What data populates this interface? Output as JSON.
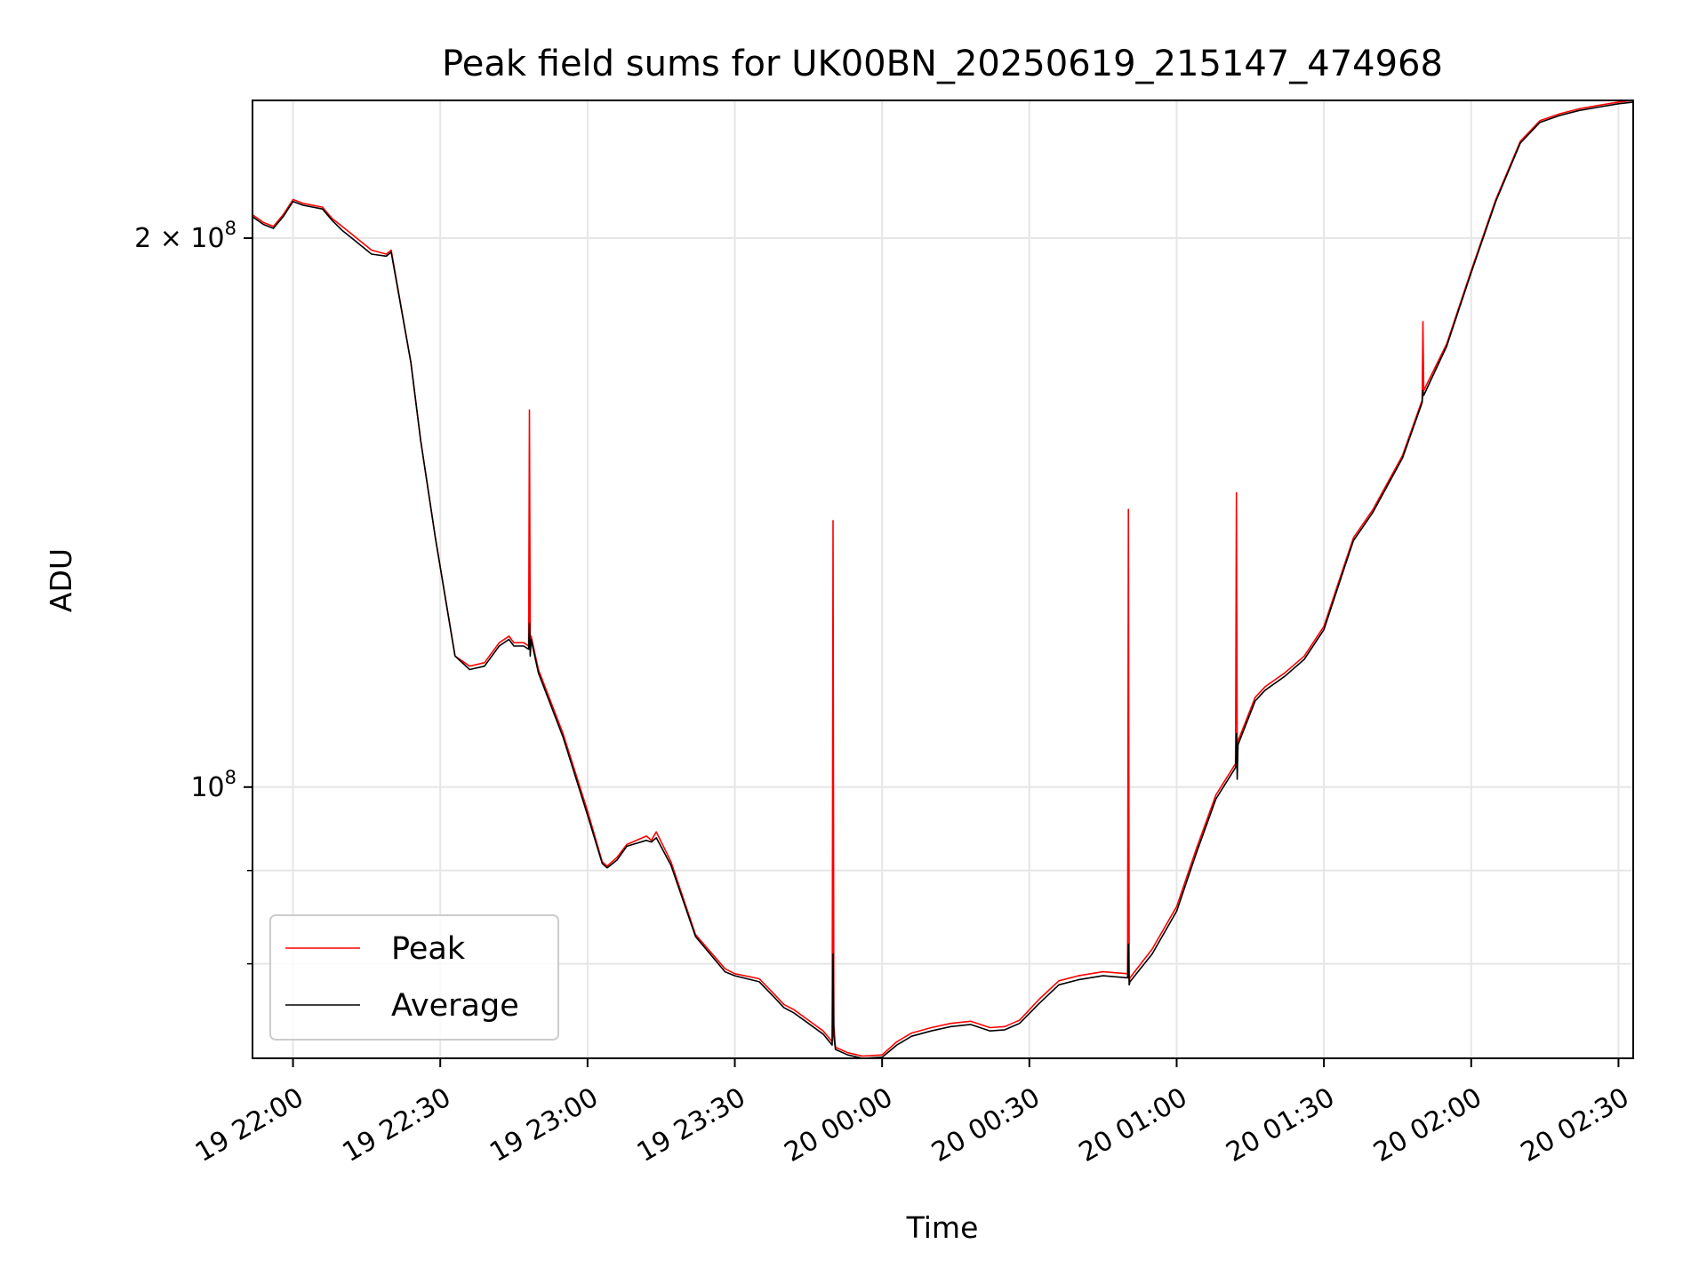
{
  "chart_data": {
    "type": "line",
    "title": "Peak field sums for UK00BN_20250619_215147_474968",
    "xlabel": "Time",
    "ylabel": "ADU",
    "y_scale": "log",
    "grid": true,
    "legend_position": "lower-left",
    "xlim": [
      "2025-06-19 21:51:45",
      "2025-06-20 02:33:00"
    ],
    "ylim": [
      71000000,
      238000000
    ],
    "x_ticks": [
      {
        "value": "2025-06-19 22:00",
        "label": "19 22:00"
      },
      {
        "value": "2025-06-19 22:30",
        "label": "19 22:30"
      },
      {
        "value": "2025-06-19 23:00",
        "label": "19 23:00"
      },
      {
        "value": "2025-06-19 23:30",
        "label": "19 23:30"
      },
      {
        "value": "2025-06-20 00:00",
        "label": "20 00:00"
      },
      {
        "value": "2025-06-20 00:30",
        "label": "20 00:30"
      },
      {
        "value": "2025-06-20 01:00",
        "label": "20 01:00"
      },
      {
        "value": "2025-06-20 01:30",
        "label": "20 01:30"
      },
      {
        "value": "2025-06-20 02:00",
        "label": "20 02:00"
      },
      {
        "value": "2025-06-20 02:30",
        "label": "20 02:30"
      }
    ],
    "y_ticks": [
      {
        "value": 200000000,
        "label_base": "2 × 10",
        "label_exp": "8"
      },
      {
        "value": 100000000,
        "label_base": "10",
        "label_exp": "8"
      }
    ],
    "y_minor_ticks": [
      80000000,
      90000000
    ],
    "series": [
      {
        "name": "Peak",
        "color": "#ff0000",
        "x": [
          "2025-06-19 21:51:45",
          "2025-06-19 21:54:00",
          "2025-06-19 21:56:00",
          "2025-06-19 21:58:00",
          "2025-06-19 22:00:00",
          "2025-06-19 22:02:00",
          "2025-06-19 22:06:00",
          "2025-06-19 22:08:00",
          "2025-06-19 22:10:00",
          "2025-06-19 22:12:00",
          "2025-06-19 22:16:00",
          "2025-06-19 22:19:00",
          "2025-06-19 22:20:00",
          "2025-06-19 22:24:00",
          "2025-06-19 22:26:00",
          "2025-06-19 22:29:00",
          "2025-06-19 22:33:00",
          "2025-06-19 22:36:00",
          "2025-06-19 22:39:00",
          "2025-06-19 22:42:00",
          "2025-06-19 22:44:00",
          "2025-06-19 22:45:00",
          "2025-06-19 22:47:00",
          "2025-06-19 22:48:00",
          "2025-06-19 22:48:10",
          "2025-06-19 22:48:20",
          "2025-06-19 22:48:30",
          "2025-06-19 22:50:00",
          "2025-06-19 22:55:00",
          "2025-06-19 23:00:00",
          "2025-06-19 23:03:00",
          "2025-06-19 23:04:00",
          "2025-06-19 23:06:00",
          "2025-06-19 23:08:00",
          "2025-06-19 23:12:00",
          "2025-06-19 23:13:00",
          "2025-06-19 23:14:00",
          "2025-06-19 23:17:00",
          "2025-06-19 23:22:00",
          "2025-06-19 23:28:00",
          "2025-06-19 23:30:00",
          "2025-06-19 23:35:00",
          "2025-06-19 23:38:00",
          "2025-06-19 23:40:00",
          "2025-06-19 23:42:00",
          "2025-06-19 23:45:00",
          "2025-06-19 23:48:00",
          "2025-06-19 23:49:50",
          "2025-06-19 23:50:00",
          "2025-06-19 23:50:10",
          "2025-06-19 23:50:30",
          "2025-06-19 23:53:00",
          "2025-06-19 23:56:00",
          "2025-06-20 00:00:00",
          "2025-06-20 00:03:00",
          "2025-06-20 00:06:00",
          "2025-06-20 00:10:00",
          "2025-06-20 00:14:00",
          "2025-06-20 00:18:00",
          "2025-06-20 00:22:00",
          "2025-06-20 00:25:00",
          "2025-06-20 00:28:00",
          "2025-06-20 00:32:00",
          "2025-06-20 00:36:00",
          "2025-06-20 00:40:00",
          "2025-06-20 00:45:00",
          "2025-06-20 00:50:00",
          "2025-06-20 00:50:10",
          "2025-06-20 00:50:20",
          "2025-06-20 00:50:30",
          "2025-06-20 00:55:00",
          "2025-06-20 01:00:00",
          "2025-06-20 01:04:00",
          "2025-06-20 01:08:00",
          "2025-06-20 01:12:00",
          "2025-06-20 01:12:10",
          "2025-06-20 01:12:20",
          "2025-06-20 01:12:30",
          "2025-06-20 01:16:00",
          "2025-06-20 01:18:00",
          "2025-06-20 01:22:00",
          "2025-06-20 01:26:00",
          "2025-06-20 01:30:00",
          "2025-06-20 01:34:00",
          "2025-06-20 01:36:00",
          "2025-06-20 01:40:00",
          "2025-06-20 01:46:00",
          "2025-06-20 01:50:00",
          "2025-06-20 01:50:10",
          "2025-06-20 01:50:20",
          "2025-06-20 01:55:00",
          "2025-06-20 02:00:00",
          "2025-06-20 02:05:00",
          "2025-06-20 02:10:00",
          "2025-06-20 02:14:00",
          "2025-06-20 02:18:00",
          "2025-06-20 02:22:00",
          "2025-06-20 02:26:00",
          "2025-06-20 02:30:00",
          "2025-06-20 02:33:00"
        ],
        "y": [
          206000000,
          204000000,
          203000000,
          206000000,
          210000000,
          209000000,
          208000000,
          205000000,
          203000000,
          201000000,
          197000000,
          196000000,
          197000000,
          171000000,
          155000000,
          137000000,
          118000000,
          116500000,
          117000000,
          120000000,
          121000000,
          120000000,
          120000000,
          119500000,
          161000000,
          120000000,
          121000000,
          116000000,
          107000000,
          97000000,
          91000000,
          90500000,
          91500000,
          93000000,
          94000000,
          93500000,
          94500000,
          91000000,
          83000000,
          79500000,
          79000000,
          78500000,
          77000000,
          76000000,
          75500000,
          74500000,
          73500000,
          72500000,
          140000000,
          74000000,
          72000000,
          71500000,
          71200000,
          71300000,
          72500000,
          73300000,
          73800000,
          74200000,
          74400000,
          73800000,
          73900000,
          74500000,
          76500000,
          78300000,
          78800000,
          79200000,
          79000000,
          142000000,
          78300000,
          78600000,
          81500000,
          86000000,
          92500000,
          99000000,
          103000000,
          145000000,
          104000000,
          106000000,
          112000000,
          113500000,
          115500000,
          118000000,
          122500000,
          132000000,
          137000000,
          142000000,
          152000000,
          163000000,
          180000000,
          165000000,
          175000000,
          192000000,
          210000000,
          226000000,
          232000000,
          234000000,
          235500000,
          236500000,
          237500000,
          238000000
        ]
      },
      {
        "name": "Average",
        "color": "#000000",
        "x": [
          "2025-06-19 21:51:45",
          "2025-06-19 21:54:00",
          "2025-06-19 21:56:00",
          "2025-06-19 21:58:00",
          "2025-06-19 22:00:00",
          "2025-06-19 22:02:00",
          "2025-06-19 22:06:00",
          "2025-06-19 22:08:00",
          "2025-06-19 22:10:00",
          "2025-06-19 22:12:00",
          "2025-06-19 22:16:00",
          "2025-06-19 22:19:00",
          "2025-06-19 22:20:00",
          "2025-06-19 22:24:00",
          "2025-06-19 22:26:00",
          "2025-06-19 22:29:00",
          "2025-06-19 22:33:00",
          "2025-06-19 22:36:00",
          "2025-06-19 22:39:00",
          "2025-06-19 22:42:00",
          "2025-06-19 22:44:00",
          "2025-06-19 22:45:00",
          "2025-06-19 22:47:00",
          "2025-06-19 22:48:00",
          "2025-06-19 22:48:10",
          "2025-06-19 22:48:20",
          "2025-06-19 22:48:30",
          "2025-06-19 22:50:00",
          "2025-06-19 22:55:00",
          "2025-06-19 23:00:00",
          "2025-06-19 23:03:00",
          "2025-06-19 23:04:00",
          "2025-06-19 23:06:00",
          "2025-06-19 23:08:00",
          "2025-06-19 23:12:00",
          "2025-06-19 23:13:00",
          "2025-06-19 23:14:00",
          "2025-06-19 23:17:00",
          "2025-06-19 23:22:00",
          "2025-06-19 23:28:00",
          "2025-06-19 23:30:00",
          "2025-06-19 23:35:00",
          "2025-06-19 23:38:00",
          "2025-06-19 23:40:00",
          "2025-06-19 23:42:00",
          "2025-06-19 23:45:00",
          "2025-06-19 23:48:00",
          "2025-06-19 23:49:50",
          "2025-06-19 23:50:00",
          "2025-06-19 23:50:10",
          "2025-06-19 23:50:30",
          "2025-06-19 23:53:00",
          "2025-06-19 23:56:00",
          "2025-06-20 00:00:00",
          "2025-06-20 00:03:00",
          "2025-06-20 00:06:00",
          "2025-06-20 00:10:00",
          "2025-06-20 00:14:00",
          "2025-06-20 00:18:00",
          "2025-06-20 00:22:00",
          "2025-06-20 00:25:00",
          "2025-06-20 00:28:00",
          "2025-06-20 00:32:00",
          "2025-06-20 00:36:00",
          "2025-06-20 00:40:00",
          "2025-06-20 00:45:00",
          "2025-06-20 00:50:00",
          "2025-06-20 00:50:10",
          "2025-06-20 00:50:20",
          "2025-06-20 00:50:30",
          "2025-06-20 00:55:00",
          "2025-06-20 01:00:00",
          "2025-06-20 01:04:00",
          "2025-06-20 01:08:00",
          "2025-06-20 01:12:00",
          "2025-06-20 01:12:10",
          "2025-06-20 01:12:20",
          "2025-06-20 01:12:30",
          "2025-06-20 01:16:00",
          "2025-06-20 01:18:00",
          "2025-06-20 01:22:00",
          "2025-06-20 01:26:00",
          "2025-06-20 01:30:00",
          "2025-06-20 01:34:00",
          "2025-06-20 01:36:00",
          "2025-06-20 01:40:00",
          "2025-06-20 01:46:00",
          "2025-06-20 01:50:00",
          "2025-06-20 01:50:10",
          "2025-06-20 01:50:20",
          "2025-06-20 01:55:00",
          "2025-06-20 02:00:00",
          "2025-06-20 02:05:00",
          "2025-06-20 02:10:00",
          "2025-06-20 02:14:00",
          "2025-06-20 02:18:00",
          "2025-06-20 02:22:00",
          "2025-06-20 02:26:00",
          "2025-06-20 02:30:00",
          "2025-06-20 02:33:00"
        ],
        "y": [
          205500000,
          203500000,
          202500000,
          205500000,
          209500000,
          208500000,
          207500000,
          204500000,
          202000000,
          200000000,
          196000000,
          195500000,
          196500000,
          171000000,
          155000000,
          137000000,
          118000000,
          116000000,
          116500000,
          119500000,
          120500000,
          119500000,
          119500000,
          119000000,
          123000000,
          118000000,
          120500000,
          115500000,
          106500000,
          96500000,
          90800000,
          90300000,
          91200000,
          92800000,
          93500000,
          93300000,
          93800000,
          90600000,
          82800000,
          79200000,
          78800000,
          78200000,
          76700000,
          75700000,
          75200000,
          74200000,
          73200000,
          72200000,
          81000000,
          73000000,
          71800000,
          71300000,
          71000000,
          71100000,
          72200000,
          73000000,
          73500000,
          73900000,
          74100000,
          73500000,
          73600000,
          74200000,
          76100000,
          77900000,
          78400000,
          78800000,
          78600000,
          82000000,
          77900000,
          78200000,
          81000000,
          85500000,
          92000000,
          98500000,
          102500000,
          107000000,
          101000000,
          105500000,
          111500000,
          113000000,
          115000000,
          117500000,
          122000000,
          131500000,
          136500000,
          141500000,
          151500000,
          162500000,
          165000000,
          164000000,
          174500000,
          191500000,
          209500000,
          225500000,
          231500000,
          233500000,
          235000000,
          236000000,
          237000000,
          237500000
        ]
      }
    ]
  }
}
